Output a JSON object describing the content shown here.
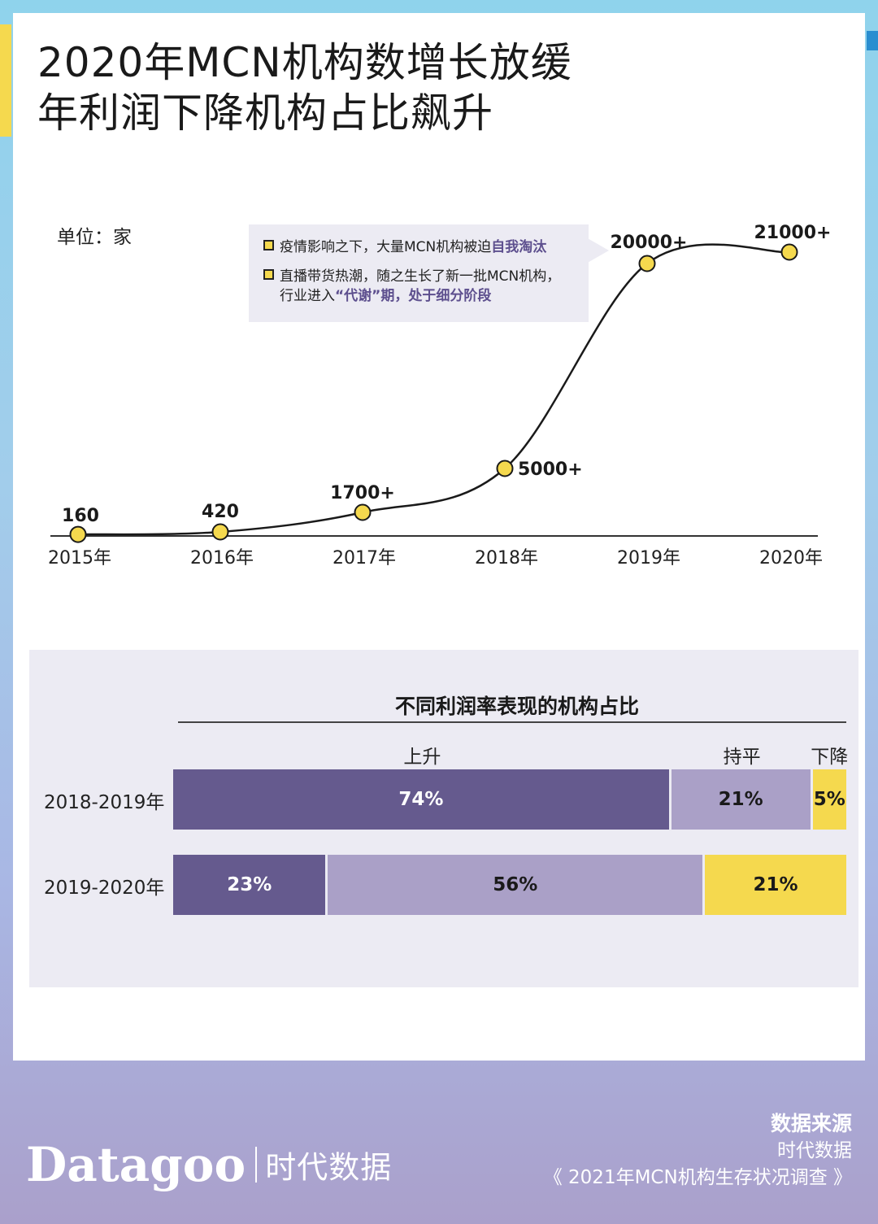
{
  "title": {
    "line1": "2020年MCN机构数增长放缓",
    "line2": "年利润下降机构占比飙升"
  },
  "unit_label": "单位：家",
  "callout": {
    "item1_text": "疫情影响之下，大量MCN机构被迫",
    "item1_highlight": "自我淘汰",
    "item2_line1": "直播带货热潮，随之生长了新一批MCN机构，",
    "item2_line2_prefix": "行业进入",
    "item2_line2_highlight": "“代谢”期，处于细分阶段"
  },
  "colors": {
    "line": "#1a1a1a",
    "marker_fill": "#f5d94e",
    "up": "#655a8e",
    "flat": "#aaa0c7",
    "down": "#f5d94e"
  },
  "chart_data": [
    {
      "type": "line",
      "categories": [
        "2015年",
        "2016年",
        "2017年",
        "2018年",
        "2019年",
        "2020年"
      ],
      "values": [
        160,
        420,
        1700,
        5000,
        20000,
        21000
      ],
      "data_labels": [
        "160",
        "420",
        "1700+",
        "5000+",
        "20000+",
        "21000+"
      ],
      "ylabel": "单位：家",
      "grid": false,
      "smooth": true
    },
    {
      "type": "bar",
      "stacked": true,
      "orientation": "horizontal",
      "title": "不同利润率表现的机构占比",
      "categories": [
        "2018-2019年",
        "2019-2020年"
      ],
      "series": [
        {
          "name": "上升",
          "values": [
            74,
            23
          ],
          "labels": [
            "74%",
            "23%"
          ]
        },
        {
          "name": "持平",
          "values": [
            21,
            56
          ],
          "labels": [
            "21%",
            "56%"
          ]
        },
        {
          "name": "下降",
          "values": [
            5,
            21
          ],
          "labels": [
            "5%",
            "21%"
          ]
        }
      ],
      "legend": "top"
    }
  ],
  "source": {
    "heading": "数据来源",
    "line1": "时代数据",
    "line2": "《 2021年MCN机构生存状况调查 》"
  },
  "brand": {
    "en": "Datagoo",
    "cn": "时代数据"
  }
}
